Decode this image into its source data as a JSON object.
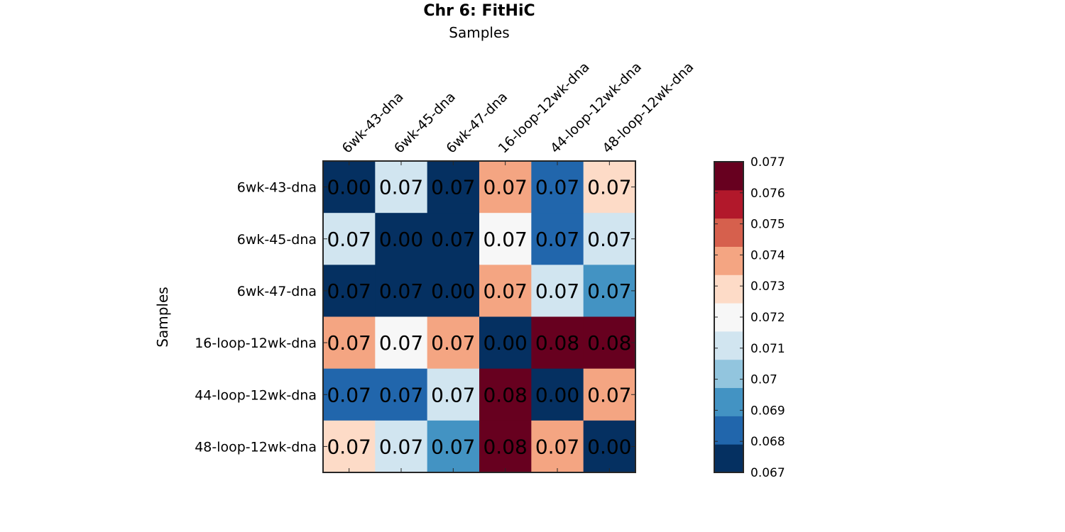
{
  "chart_data": {
    "type": "heatmap",
    "title": "Chr 6: FitHiC",
    "xlabel": "Samples",
    "ylabel": "Samples",
    "categories": [
      "6wk-43-dna",
      "6wk-45-dna",
      "6wk-47-dna",
      "16-loop-12wk-dna",
      "44-loop-12wk-dna",
      "48-loop-12wk-dna"
    ],
    "values": [
      [
        0.0,
        0.0712,
        0.0665,
        0.0738,
        0.0686,
        0.0728
      ],
      [
        0.0712,
        0.0,
        0.0665,
        0.072,
        0.0686,
        0.0712
      ],
      [
        0.0665,
        0.0665,
        0.0,
        0.0738,
        0.0712,
        0.0694
      ],
      [
        0.0738,
        0.072,
        0.0738,
        0.0,
        0.0775,
        0.0762
      ],
      [
        0.0686,
        0.0686,
        0.0712,
        0.0775,
        0.0,
        0.0738
      ],
      [
        0.0728,
        0.0712,
        0.0694,
        0.0762,
        0.0738,
        0.0
      ]
    ],
    "cell_labels": [
      [
        "0.00",
        "0.07",
        "0.07",
        "0.07",
        "0.07",
        "0.07"
      ],
      [
        "0.07",
        "0.00",
        "0.07",
        "0.07",
        "0.07",
        "0.07"
      ],
      [
        "0.07",
        "0.07",
        "0.00",
        "0.07",
        "0.07",
        "0.07"
      ],
      [
        "0.07",
        "0.07",
        "0.07",
        "0.00",
        "0.08",
        "0.08"
      ],
      [
        "0.07",
        "0.07",
        "0.07",
        "0.08",
        "0.00",
        "0.07"
      ],
      [
        "0.07",
        "0.07",
        "0.07",
        "0.08",
        "0.07",
        "0.00"
      ]
    ],
    "colorbar": {
      "range": [
        0.067,
        0.077
      ],
      "ticks": [
        0.067,
        0.068,
        0.069,
        0.07,
        0.071,
        0.072,
        0.073,
        0.074,
        0.075,
        0.076,
        0.077
      ],
      "tick_labels": [
        "0.067",
        "0.068",
        "0.069",
        "0.07",
        "0.071",
        "0.072",
        "0.073",
        "0.074",
        "0.075",
        "0.076",
        "0.077"
      ],
      "colors": [
        "#053061",
        "#2166ac",
        "#4393c3",
        "#92c5de",
        "#d1e5f0",
        "#f7f7f7",
        "#fddbc7",
        "#f4a582",
        "#d6604d",
        "#b2182b",
        "#67001f"
      ]
    },
    "grid": false,
    "legend": "colorbar-right"
  }
}
